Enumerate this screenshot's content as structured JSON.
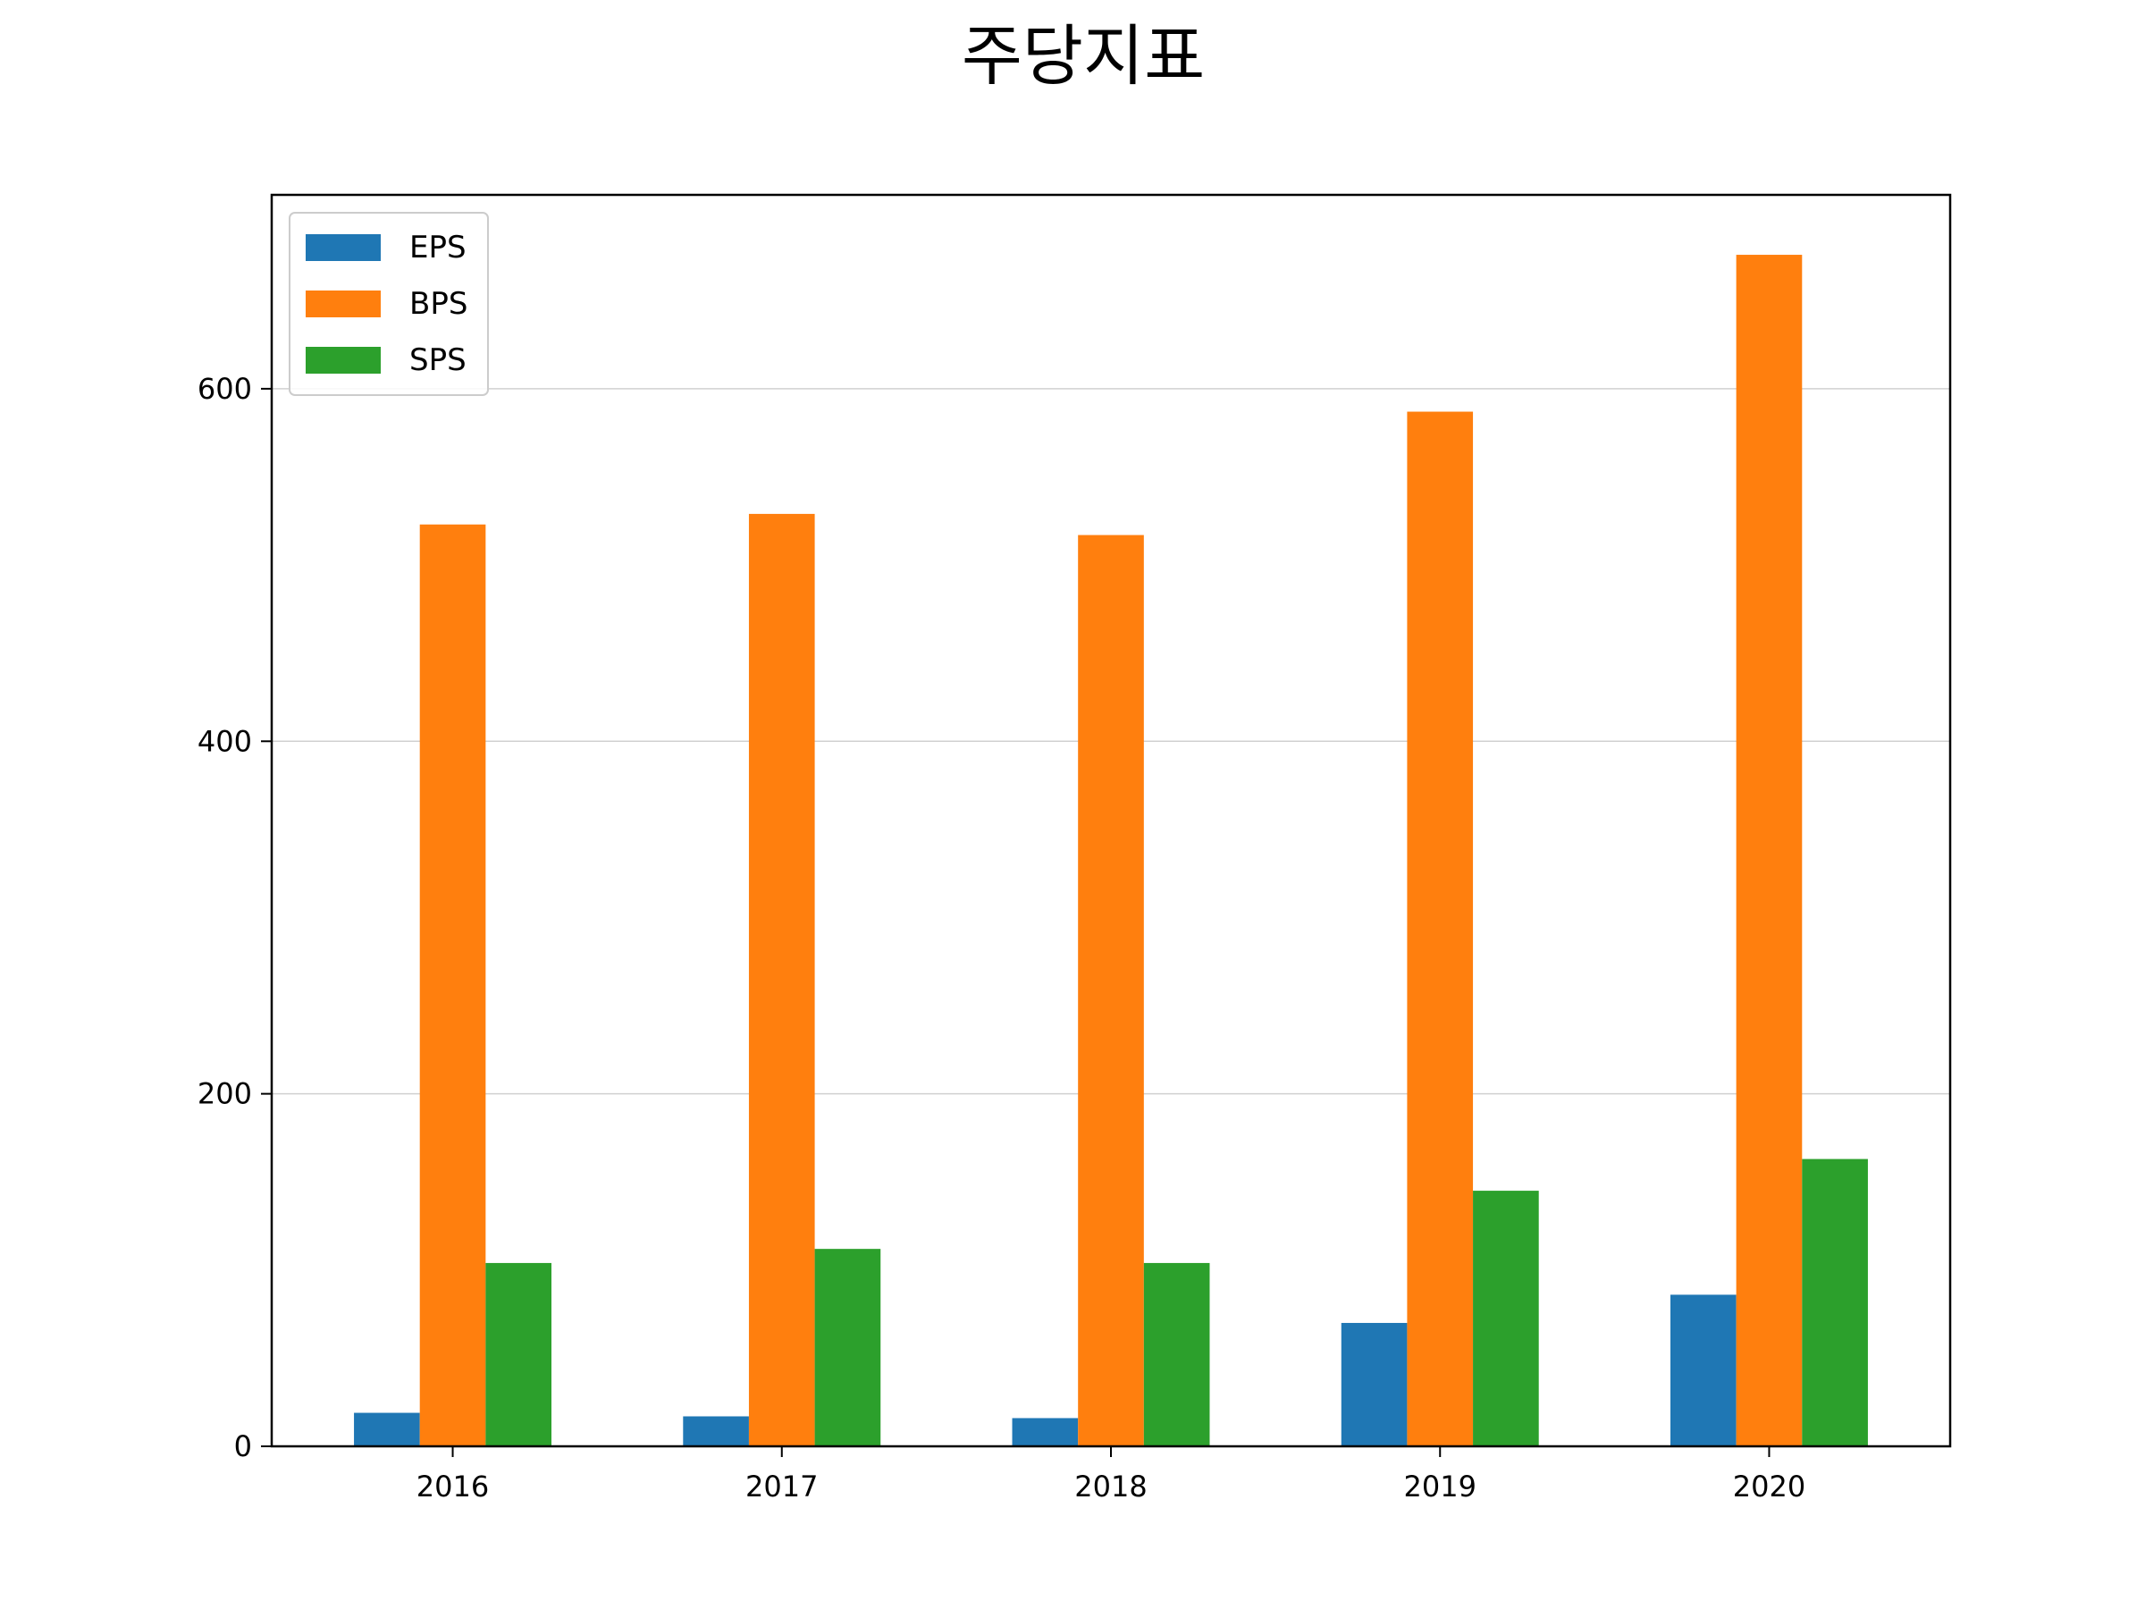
{
  "chart_data": {
    "type": "bar",
    "title": "주당지표",
    "xlabel": "",
    "ylabel": "",
    "categories": [
      "2016",
      "2017",
      "2018",
      "2019",
      "2020"
    ],
    "series": [
      {
        "name": "EPS",
        "color": "#1f77b4",
        "values": [
          19,
          17,
          16,
          70,
          86
        ]
      },
      {
        "name": "BPS",
        "color": "#ff7f0e",
        "values": [
          523,
          529,
          517,
          587,
          676
        ]
      },
      {
        "name": "SPS",
        "color": "#2ca02c",
        "values": [
          104,
          112,
          104,
          145,
          163
        ]
      }
    ],
    "ylim": [
      0,
      710
    ],
    "yticks": [
      "0",
      "200",
      "400",
      "600"
    ],
    "grid": "horizontal",
    "legend_position": "top-left"
  }
}
